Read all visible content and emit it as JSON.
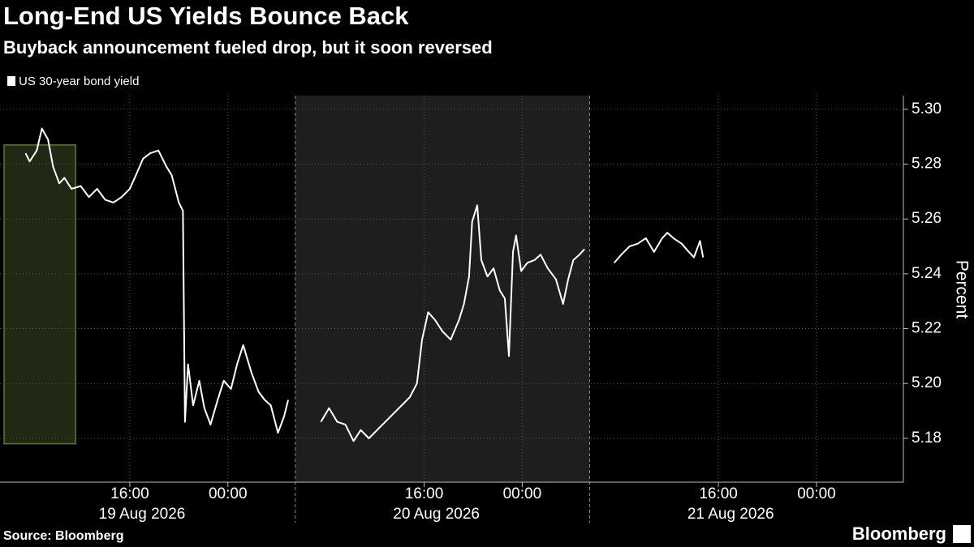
{
  "chart_data": {
    "type": "line",
    "title": "Long-End US Yields Bounce Back",
    "subtitle": "Buyback announcement fueled drop, but it soon reversed",
    "y_label": "Percent",
    "source": "Source: Bloomberg",
    "brand": "Bloomberg",
    "grid": true,
    "background": "#000000",
    "shaded": {
      "x": [
        "2026-08-20T05:30",
        "2026-08-21T05:30"
      ],
      "color": "#1e1e1e"
    },
    "session_breaks": [
      "2026-08-20T05:30",
      "2026-08-21T05:30"
    ],
    "highlight": {
      "x": [
        "2026-08-19T05:45",
        "2026-08-19T11:35"
      ],
      "y": [
        5.178,
        5.287
      ],
      "color": "#3a4a22"
    },
    "xlim": [
      "2026-08-19T05:25",
      "2026-08-22T07:05"
    ],
    "xticks": [
      {
        "value": "2026-08-19T16:00",
        "label": "16:00"
      },
      {
        "value": "2026-08-20T00:00",
        "label": "00:00"
      },
      {
        "value": "2026-08-20T16:00",
        "label": "16:00"
      },
      {
        "value": "2026-08-21T00:00",
        "label": "00:00"
      },
      {
        "value": "2026-08-21T16:00",
        "label": "16:00"
      },
      {
        "value": "2026-08-22T00:00",
        "label": "00:00"
      }
    ],
    "date_labels": [
      {
        "value": "2026-08-19T17:00",
        "label": "19 Aug 2026"
      },
      {
        "value": "2026-08-20T17:00",
        "label": "20 Aug 2026"
      },
      {
        "value": "2026-08-21T17:00",
        "label": "21 Aug 2026"
      }
    ],
    "ylim": [
      5.164,
      5.305
    ],
    "yticks": [
      5.18,
      {
        "value": 5.2,
        "label": "5.20"
      },
      5.22,
      5.24,
      5.26,
      5.28,
      {
        "value": 5.3,
        "label": "5.30"
      }
    ],
    "series": [
      {
        "name": "US 30-year bond yield",
        "color": "#ffffff",
        "x": [
          "2026-08-19T07:30",
          "2026-08-19T07:50",
          "2026-08-19T08:25",
          "2026-08-19T08:50",
          "2026-08-19T09:20",
          "2026-08-19T09:45",
          "2026-08-19T10:15",
          "2026-08-19T10:40",
          "2026-08-19T11:15",
          "2026-08-19T12:00",
          "2026-08-19T12:40",
          "2026-08-19T13:20",
          "2026-08-19T14:00",
          "2026-08-19T14:40",
          "2026-08-19T15:20",
          "2026-08-19T16:00",
          "2026-08-19T16:30",
          "2026-08-19T17:05",
          "2026-08-19T17:40",
          "2026-08-19T18:20",
          "2026-08-19T19:00",
          "2026-08-19T19:25",
          "2026-08-19T20:00",
          "2026-08-19T20:20",
          "2026-08-19T20:30",
          "2026-08-19T20:45",
          "2026-08-19T21:10",
          "2026-08-19T21:40",
          "2026-08-19T22:05",
          "2026-08-19T22:35",
          "2026-08-19T23:10",
          "2026-08-19T23:40",
          "2026-08-20T00:15",
          "2026-08-20T00:45",
          "2026-08-20T01:15",
          "2026-08-20T01:55",
          "2026-08-20T02:30",
          "2026-08-20T03:00",
          "2026-08-20T03:30",
          "2026-08-20T04:05",
          "2026-08-20T04:35",
          "2026-08-20T04:55",
          "2026-08-20T06:00",
          "2026-08-20T07:35",
          "2026-08-20T08:15",
          "2026-08-20T08:55",
          "2026-08-20T09:35",
          "2026-08-20T10:15",
          "2026-08-20T10:50",
          "2026-08-20T11:30",
          "2026-08-20T12:10",
          "2026-08-20T12:50",
          "2026-08-20T13:30",
          "2026-08-20T14:10",
          "2026-08-20T14:50",
          "2026-08-20T15:25",
          "2026-08-20T15:50",
          "2026-08-20T16:20",
          "2026-08-20T16:55",
          "2026-08-20T17:30",
          "2026-08-20T18:10",
          "2026-08-20T18:50",
          "2026-08-20T19:15",
          "2026-08-20T19:40",
          "2026-08-20T19:55",
          "2026-08-20T20:20",
          "2026-08-20T20:40",
          "2026-08-20T21:10",
          "2026-08-20T21:40",
          "2026-08-20T22:10",
          "2026-08-20T22:35",
          "2026-08-20T22:55",
          "2026-08-20T23:15",
          "2026-08-20T23:30",
          "2026-08-20T23:55",
          "2026-08-21T00:25",
          "2026-08-21T01:00",
          "2026-08-21T01:30",
          "2026-08-21T02:05",
          "2026-08-21T02:45",
          "2026-08-21T03:20",
          "2026-08-21T03:45",
          "2026-08-21T04:10",
          "2026-08-21T04:40",
          "2026-08-21T05:05",
          "2026-08-21T06:00",
          "2026-08-21T07:30",
          "2026-08-21T08:05",
          "2026-08-21T08:45",
          "2026-08-21T09:25",
          "2026-08-21T10:05",
          "2026-08-21T10:45",
          "2026-08-21T11:25",
          "2026-08-21T11:50",
          "2026-08-21T12:20",
          "2026-08-21T13:00",
          "2026-08-21T13:35",
          "2026-08-21T14:00",
          "2026-08-21T14:30",
          "2026-08-21T14:45"
        ],
        "values": [
          5.284,
          5.281,
          5.285,
          5.293,
          5.289,
          5.279,
          5.273,
          5.275,
          5.271,
          5.272,
          5.268,
          5.271,
          5.267,
          5.266,
          5.268,
          5.271,
          5.276,
          5.282,
          5.284,
          5.285,
          5.279,
          5.276,
          5.266,
          5.263,
          5.186,
          5.207,
          5.192,
          5.201,
          5.191,
          5.185,
          5.194,
          5.201,
          5.198,
          5.207,
          5.214,
          5.204,
          5.197,
          5.194,
          5.192,
          5.182,
          5.188,
          5.194,
          null,
          5.186,
          5.191,
          5.186,
          5.185,
          5.179,
          5.183,
          5.18,
          5.183,
          5.186,
          5.189,
          5.192,
          5.195,
          5.2,
          5.216,
          5.226,
          5.223,
          5.219,
          5.216,
          5.223,
          5.229,
          5.239,
          5.259,
          5.265,
          5.245,
          5.239,
          5.242,
          5.234,
          5.231,
          5.21,
          5.248,
          5.254,
          5.241,
          5.244,
          5.245,
          5.247,
          5.242,
          5.238,
          5.229,
          5.238,
          5.245,
          5.247,
          5.249,
          null,
          5.244,
          5.247,
          5.25,
          5.251,
          5.253,
          5.248,
          5.253,
          5.255,
          5.253,
          5.251,
          5.248,
          5.246,
          5.252,
          5.246
        ]
      }
    ]
  }
}
